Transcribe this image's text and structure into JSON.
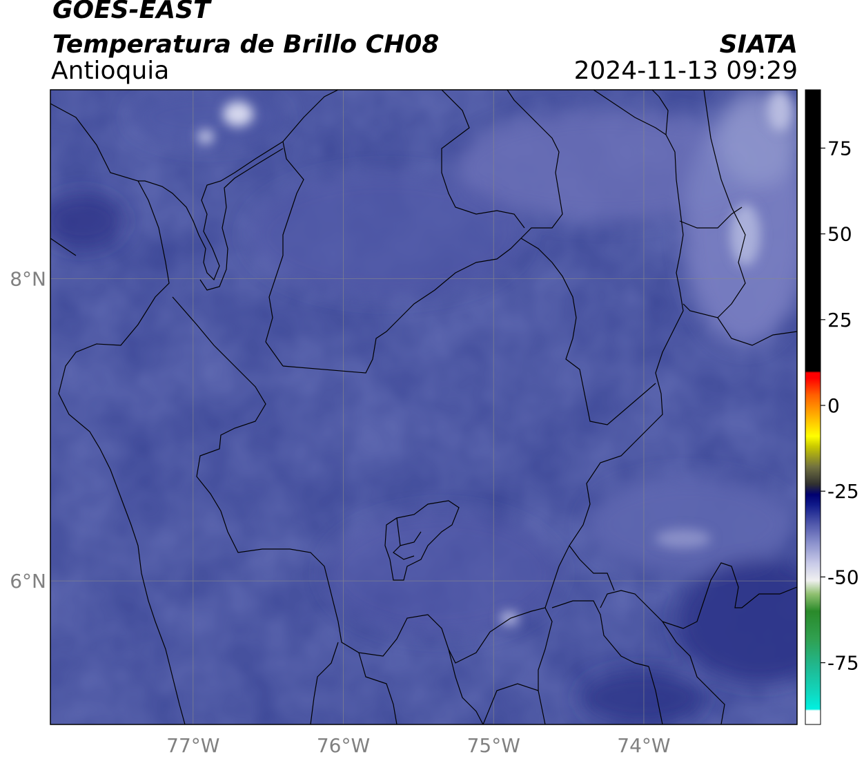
{
  "header": {
    "satellite": "GOES-EAST",
    "product": "Temperatura de Brillo CH08",
    "region": "Antioquia",
    "agency": "SIATA",
    "datetime": "2024-11-13 09:29"
  },
  "map": {
    "lon_range": [
      -77.95,
      -72.98
    ],
    "lat_range": [
      5.05,
      9.25
    ],
    "lat_ticks": [
      {
        "value": 8,
        "label": "8°N"
      },
      {
        "value": 6,
        "label": "6°N"
      }
    ],
    "lon_ticks": [
      {
        "value": -77,
        "label": "77°W"
      },
      {
        "value": -76,
        "label": "76°W"
      },
      {
        "value": -75,
        "label": "75°W"
      },
      {
        "value": -74,
        "label": "74°W"
      }
    ],
    "grid": true,
    "colors": {
      "background_field": "#3f4a99",
      "border_lines": "#000000",
      "grid_lines": "#8a8a8a"
    }
  },
  "colorbar": {
    "orientation": "vertical",
    "position": "right",
    "range": [
      -93,
      92
    ],
    "ticks": [
      {
        "value": 75,
        "label": "75"
      },
      {
        "value": 50,
        "label": "50"
      },
      {
        "value": 25,
        "label": "25"
      },
      {
        "value": 0,
        "label": "0"
      },
      {
        "value": -25,
        "label": "-25"
      },
      {
        "value": -50,
        "label": "-50"
      },
      {
        "value": -75,
        "label": "-75"
      }
    ],
    "color_stops": [
      {
        "value": -93,
        "color": "#ffffff"
      },
      {
        "value": -89,
        "color": "#ffffff"
      },
      {
        "value": -88.5,
        "color": "#00f0e0"
      },
      {
        "value": -84,
        "color": "#10d8c0"
      },
      {
        "value": -76,
        "color": "#20b890"
      },
      {
        "value": -68,
        "color": "#30a050"
      },
      {
        "value": -60,
        "color": "#2a8a2a"
      },
      {
        "value": -55,
        "color": "#90c070"
      },
      {
        "value": -51,
        "color": "#f0f0f0"
      },
      {
        "value": -46,
        "color": "#c8cae8"
      },
      {
        "value": -40,
        "color": "#8a90cc"
      },
      {
        "value": -34,
        "color": "#4a52a8"
      },
      {
        "value": -29,
        "color": "#101a8a"
      },
      {
        "value": -26,
        "color": "#000070"
      },
      {
        "value": -23,
        "color": "#303030"
      },
      {
        "value": -18,
        "color": "#707040"
      },
      {
        "value": -12,
        "color": "#c8c800"
      },
      {
        "value": -9,
        "color": "#ffff00"
      },
      {
        "value": -3,
        "color": "#ffb000"
      },
      {
        "value": 3,
        "color": "#ff6000"
      },
      {
        "value": 8,
        "color": "#ff0000"
      },
      {
        "value": 9.5,
        "color": "#ff0000"
      },
      {
        "value": 10,
        "color": "#000000"
      },
      {
        "value": 92,
        "color": "#000000"
      }
    ]
  }
}
